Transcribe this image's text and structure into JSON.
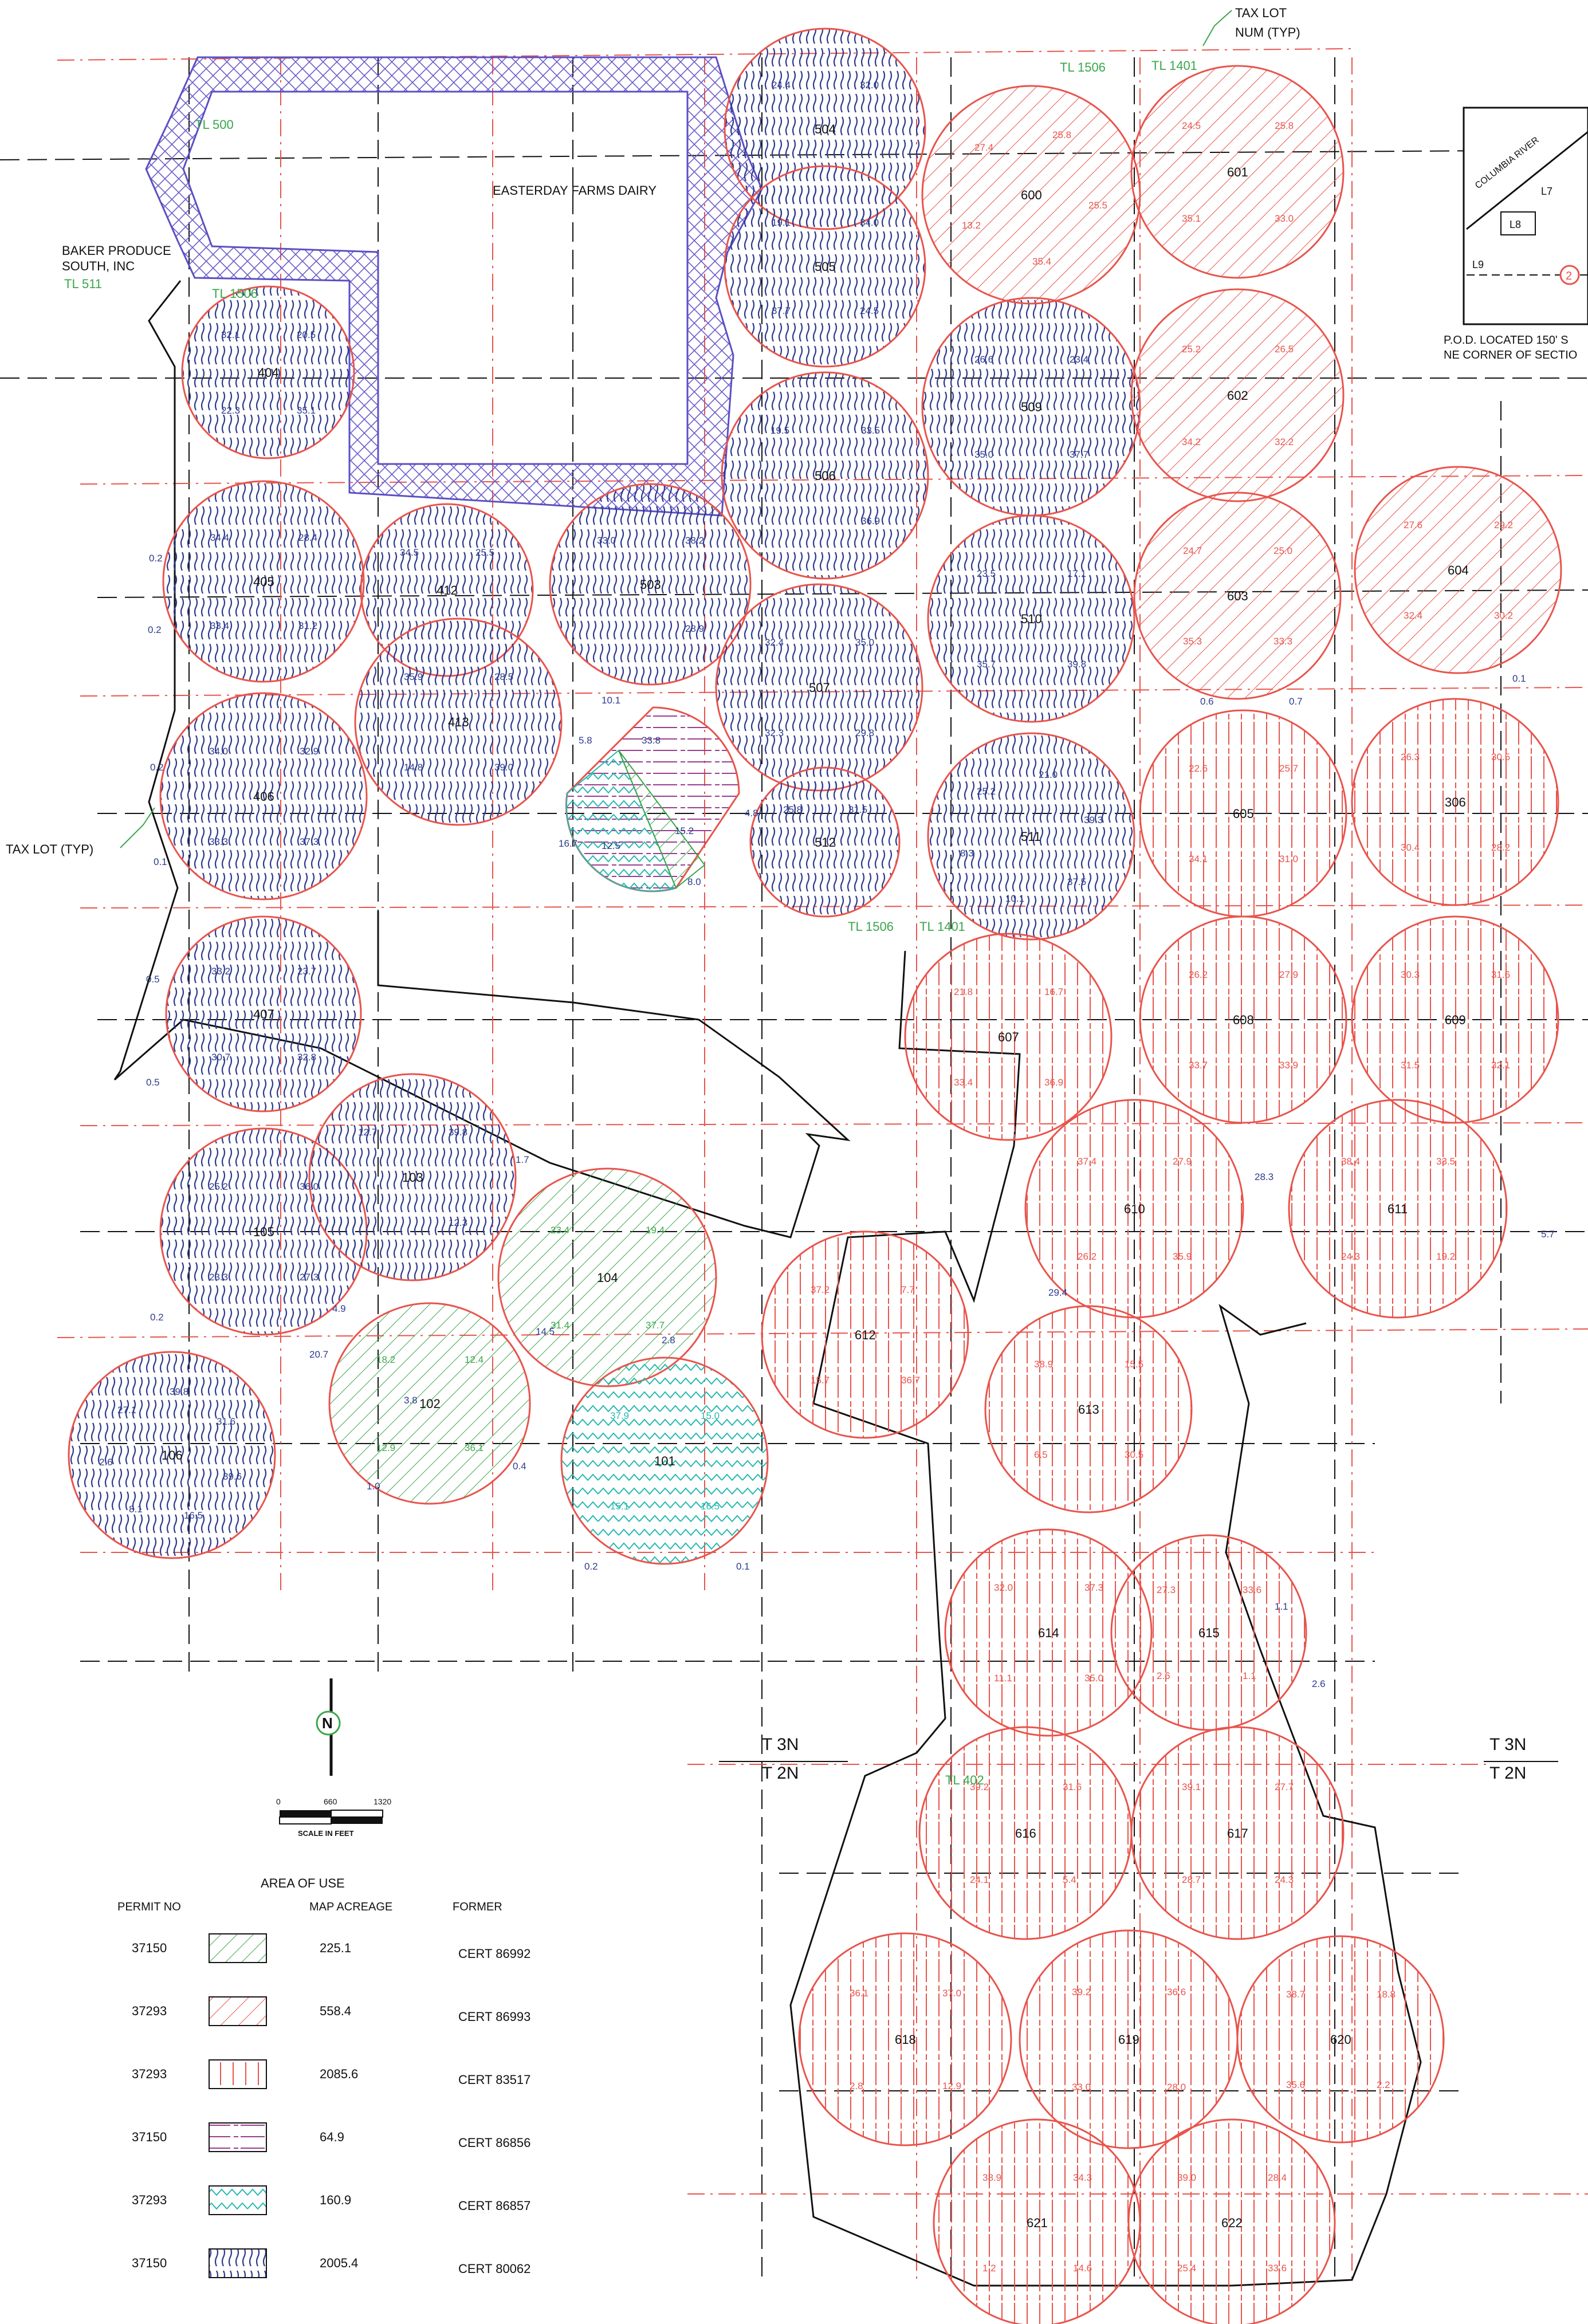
{
  "colors": {
    "red": "#e8544c",
    "blue": "#2d3a8c",
    "green": "#3aa64b",
    "teal": "#26b8b0",
    "purple": "#9a3c8f",
    "navy": "#6a5cc9",
    "black": "#111111"
  },
  "header": {
    "tax_lot_callout": [
      "TAX LOT",
      "NUM (TYP)"
    ],
    "tax_lot_left": "TAX LOT (TYP)"
  },
  "labels": {
    "dairy": "EASTERDAY FARMS DAIRY",
    "baker": [
      "BAKER PRODUCE",
      "SOUTH, INC"
    ],
    "tl_511": "TL 511",
    "tl_500": "TL 500",
    "tl_1506": "TL 1506",
    "tl_1401": "TL 1401",
    "tl_402": "TL 402",
    "township_3n": "T 3N",
    "township_2n": "T 2N"
  },
  "inset": {
    "river": "COLUMBIA RIVER",
    "lots": [
      "L7",
      "L8",
      "L9"
    ],
    "pod_note": [
      "P.O.D. LOCATED 150' S",
      "NE CORNER OF SECTIO"
    ]
  },
  "scale": {
    "ticks": [
      "0",
      "660",
      "1320"
    ],
    "label": "SCALE IN FEET"
  },
  "legend": {
    "title": "AREA OF USE",
    "headers": [
      "PERMIT NO",
      "MAP ACREAGE",
      "FORMER"
    ],
    "rows": [
      {
        "permit": "37150",
        "acreage": "225.1",
        "former": "CERT 86992",
        "pattern": "green-diag"
      },
      {
        "permit": "37293",
        "acreage": "558.4",
        "former": "CERT 86993",
        "pattern": "red-diag"
      },
      {
        "permit": "37293",
        "acreage": "2085.6",
        "former": "CERT 83517",
        "pattern": "red-vert"
      },
      {
        "permit": "37150",
        "acreage": "64.9",
        "former": "CERT 86856",
        "pattern": "purple-horiz"
      },
      {
        "permit": "37293",
        "acreage": "160.9",
        "former": "CERT 86857",
        "pattern": "teal-zig"
      },
      {
        "permit": "37150",
        "acreage": "2005.4",
        "former": "CERT 80062",
        "pattern": "blue-wave"
      }
    ]
  },
  "fields": [
    {
      "id": "404",
      "pattern": "blue-wave",
      "acres": [
        "32.1",
        "20.5",
        "35.1",
        "22.3"
      ]
    },
    {
      "id": "405",
      "pattern": "blue-wave",
      "acres": [
        "34.4",
        "28.4",
        "31.2",
        "33.4"
      ]
    },
    {
      "id": "406",
      "pattern": "blue-wave",
      "acres": [
        "34.0",
        "32.9",
        "37.3",
        "33.3"
      ]
    },
    {
      "id": "407",
      "pattern": "blue-wave",
      "acres": [
        "33.2",
        "23.7",
        "32.8",
        "30.7"
      ]
    },
    {
      "id": "105",
      "pattern": "blue-wave",
      "acres": [
        "25.2",
        "36.0",
        "27.3",
        "23.3"
      ]
    },
    {
      "id": "106",
      "pattern": "blue-wave",
      "acres": [
        "27.1",
        "39.8",
        "31.6",
        "39.6",
        "16.5",
        "8.1",
        "2.6"
      ]
    },
    {
      "id": "103",
      "pattern": "blue-wave",
      "acres": [
        "12.7",
        "39.8",
        "12.3"
      ]
    },
    {
      "id": "412",
      "pattern": "blue-wave",
      "acres": [
        "34.5",
        "25.5"
      ]
    },
    {
      "id": "413",
      "pattern": "blue-wave",
      "acres": [
        "35.9",
        "28.5",
        "39.0",
        "14.8"
      ]
    },
    {
      "id": "503",
      "pattern": "blue-wave",
      "acres": [
        "33.0",
        "38.2",
        "28.9"
      ]
    },
    {
      "id": "504",
      "pattern": "blue-wave",
      "acres": [
        "24.4",
        "32.0"
      ]
    },
    {
      "id": "505",
      "pattern": "blue-wave",
      "acres": [
        "19.1",
        "34.0",
        "24.5",
        "37.7"
      ]
    },
    {
      "id": "506",
      "pattern": "blue-wave",
      "acres": [
        "19.5",
        "33.5",
        "36.9"
      ]
    },
    {
      "id": "507",
      "pattern": "blue-wave",
      "acres": [
        "32.4",
        "35.0",
        "29.8",
        "32.3"
      ]
    },
    {
      "id": "512",
      "pattern": "blue-wave",
      "acres": [
        "25.8",
        "31.5"
      ]
    },
    {
      "id": "509",
      "pattern": "blue-wave",
      "acres": [
        "26.6",
        "23.4",
        "37.7",
        "35.0"
      ]
    },
    {
      "id": "510",
      "pattern": "blue-wave",
      "acres": [
        "23.5",
        "17.1",
        "39.8",
        "35.7"
      ]
    },
    {
      "id": "511",
      "pattern": "blue-wave",
      "acres": [
        "25.2",
        "21.0",
        "39.3",
        "37.5",
        "10.1",
        "8.3"
      ]
    },
    {
      "id": "600",
      "pattern": "red-diag",
      "acres": [
        "27.4",
        "25.8",
        "25.5",
        "35.4",
        "13.2"
      ]
    },
    {
      "id": "601",
      "pattern": "red-diag",
      "acres": [
        "24.5",
        "25.8",
        "33.0",
        "35.1"
      ]
    },
    {
      "id": "602",
      "pattern": "red-diag",
      "acres": [
        "25.2",
        "26.5",
        "32.2",
        "34.2"
      ]
    },
    {
      "id": "603",
      "pattern": "red-diag",
      "acres": [
        "24.7",
        "25.0",
        "33.3",
        "35.3"
      ]
    },
    {
      "id": "604",
      "pattern": "red-diag",
      "acres": [
        "27.6",
        "29.2",
        "30.2",
        "32.4"
      ]
    },
    {
      "id": "605",
      "pattern": "red-vert",
      "acres": [
        "22.6",
        "25.7",
        "31.0",
        "34.1"
      ]
    },
    {
      "id": "306",
      "pattern": "red-vert",
      "acres": [
        "26.3",
        "30.5",
        "28.2",
        "30.4"
      ]
    },
    {
      "id": "607",
      "pattern": "red-vert",
      "acres": [
        "21.8",
        "16.7",
        "36.9",
        "33.4"
      ]
    },
    {
      "id": "608",
      "pattern": "red-vert",
      "acres": [
        "26.2",
        "27.9",
        "33.9",
        "33.7"
      ]
    },
    {
      "id": "609",
      "pattern": "red-vert",
      "acres": [
        "30.3",
        "31.6",
        "32.1",
        "31.5"
      ]
    },
    {
      "id": "610",
      "pattern": "red-vert",
      "acres": [
        "37.4",
        "27.9",
        "35.9",
        "26.2"
      ]
    },
    {
      "id": "611",
      "pattern": "red-vert",
      "acres": [
        "38.4",
        "33.5",
        "19.2",
        "24.3"
      ]
    },
    {
      "id": "612",
      "pattern": "red-vert",
      "acres": [
        "37.2",
        "7.7",
        "36.7",
        "15.7"
      ]
    },
    {
      "id": "613",
      "pattern": "red-vert",
      "acres": [
        "38.9",
        "15.5",
        "30.5",
        "6.5"
      ]
    },
    {
      "id": "614",
      "pattern": "red-vert",
      "acres": [
        "32.0",
        "37.3",
        "35.0",
        "11.1"
      ]
    },
    {
      "id": "615",
      "pattern": "red-vert",
      "acres": [
        "27.3",
        "33.6",
        "1.1",
        "2.6"
      ]
    },
    {
      "id": "616",
      "pattern": "red-vert",
      "acres": [
        "39.2",
        "31.6",
        "5.4",
        "24.1"
      ]
    },
    {
      "id": "617",
      "pattern": "red-vert",
      "acres": [
        "39.1",
        "27.7",
        "24.3",
        "28.7"
      ]
    },
    {
      "id": "618",
      "pattern": "red-vert",
      "acres": [
        "36.1",
        "37.0",
        "12.9",
        "2.8"
      ]
    },
    {
      "id": "619",
      "pattern": "red-vert",
      "acres": [
        "39.2",
        "36.6",
        "28.0",
        "33.0"
      ]
    },
    {
      "id": "620",
      "pattern": "red-vert",
      "acres": [
        "38.7",
        "18.8",
        "2.2",
        "35.6"
      ]
    },
    {
      "id": "621",
      "pattern": "red-vert",
      "acres": [
        "38.9",
        "34.3",
        "14.6",
        "1.2"
      ]
    },
    {
      "id": "622",
      "pattern": "red-vert",
      "acres": [
        "39.0",
        "28.4",
        "33.6",
        "25.4"
      ]
    },
    {
      "id": "102",
      "pattern": "green-diag",
      "acres": [
        "18.2",
        "12.4",
        "36.1",
        "12.9"
      ]
    },
    {
      "id": "104",
      "pattern": "green-diag",
      "acres": [
        "23.4",
        "19.4",
        "37.7",
        "31.4"
      ]
    },
    {
      "id": "101",
      "pattern": "teal-zig",
      "acres": [
        "37.9",
        "15.0",
        "16.5",
        "15.1"
      ]
    }
  ],
  "edge_values": [
    "0.2",
    "0.2",
    "0.2",
    "0.1",
    "0.5",
    "0.5",
    "1.7",
    "0.2",
    "4.9",
    "20.7",
    "3.8",
    "1.0",
    "0.4",
    "0.2",
    "0.1",
    "14.5",
    "2.8",
    "1.1",
    "2.6",
    "0.6",
    "0.7",
    "0.1",
    "5.7",
    "28.3",
    "29.4",
    "5.8",
    "10.1",
    "4.8",
    "15.2",
    "8.0",
    "16.7",
    "12.5",
    "33.8"
  ]
}
